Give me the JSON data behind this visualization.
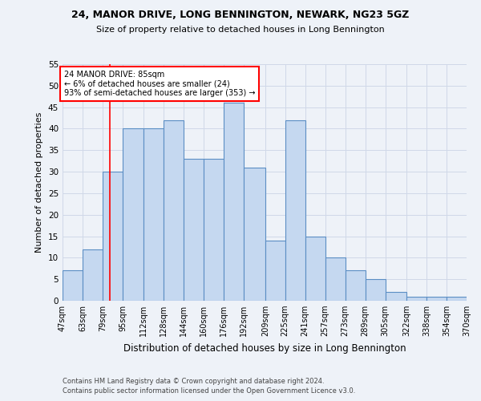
{
  "title1": "24, MANOR DRIVE, LONG BENNINGTON, NEWARK, NG23 5GZ",
  "title2": "Size of property relative to detached houses in Long Bennington",
  "xlabel": "Distribution of detached houses by size in Long Bennington",
  "ylabel": "Number of detached properties",
  "footnote1": "Contains HM Land Registry data © Crown copyright and database right 2024.",
  "footnote2": "Contains public sector information licensed under the Open Government Licence v3.0.",
  "bar_values": [
    7,
    12,
    30,
    40,
    40,
    42,
    33,
    33,
    46,
    31,
    14,
    42,
    15,
    10,
    7,
    5,
    2,
    1,
    1,
    1
  ],
  "bin_edges": [
    47,
    63,
    79,
    95,
    112,
    128,
    144,
    160,
    176,
    192,
    209,
    225,
    241,
    257,
    273,
    289,
    305,
    322,
    338,
    354,
    370
  ],
  "xlabels": [
    "47sqm",
    "63sqm",
    "79sqm",
    "95sqm",
    "112sqm",
    "128sqm",
    "144sqm",
    "160sqm",
    "176sqm",
    "192sqm",
    "209sqm",
    "225sqm",
    "241sqm",
    "257sqm",
    "273sqm",
    "289sqm",
    "305sqm",
    "322sqm",
    "338sqm",
    "354sqm",
    "370sqm"
  ],
  "bar_color": "#c5d8f0",
  "bar_edge_color": "#5b8ec4",
  "grid_color": "#d0d8e8",
  "bg_color": "#eef2f8",
  "red_line_x": 85,
  "annotation_text": "24 MANOR DRIVE: 85sqm\n← 6% of detached houses are smaller (24)\n93% of semi-detached houses are larger (353) →",
  "annotation_box_color": "white",
  "annotation_box_edge": "red",
  "ylim": [
    0,
    55
  ],
  "yticks": [
    0,
    5,
    10,
    15,
    20,
    25,
    30,
    35,
    40,
    45,
    50,
    55
  ]
}
